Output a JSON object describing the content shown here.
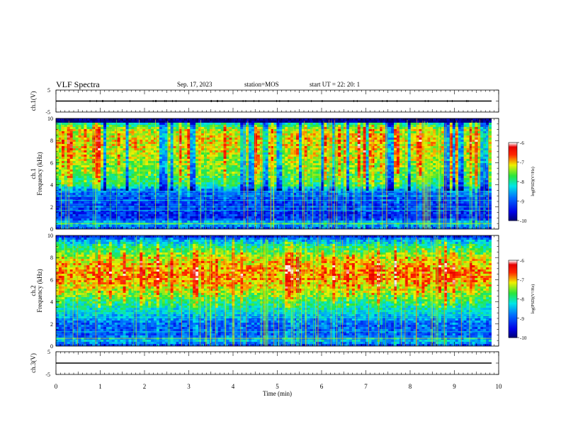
{
  "header": {
    "title": "VLF Spectra",
    "date": "Sep. 17, 2023",
    "station": "station=MOS",
    "start": "start  UT =   22: 20: 1"
  },
  "chart_data": [
    {
      "type": "line",
      "panel": "ch1-voltage",
      "ylabel": "ch.1(V)",
      "ylim": [
        -5,
        5
      ],
      "yticks": [
        "5",
        "-5"
      ],
      "xlim": [
        0,
        10
      ],
      "series": [
        {
          "x": [
            0,
            9.84
          ],
          "values": [
            0,
            0
          ]
        }
      ]
    },
    {
      "type": "heatmap",
      "panel": "ch1-spectrogram",
      "ylabel": "ch.1\nFrequency (kHz)",
      "ylim": [
        0,
        10
      ],
      "yticks": [
        "0",
        "2",
        "4",
        "6",
        "8",
        "10"
      ],
      "xlim": [
        0,
        10
      ],
      "data_xmax": 9.84,
      "colorbar": {
        "label": "log(PSD)(V²/Hz)",
        "range": [
          -10,
          -6
        ],
        "ticks": [
          "-6",
          "-7",
          "-8",
          "-9",
          "-10"
        ]
      },
      "band_profile": [
        [
          0,
          -9.1
        ],
        [
          0.5,
          -8.3
        ],
        [
          1,
          -9.3
        ],
        [
          2,
          -9.2
        ],
        [
          3,
          -9.0
        ],
        [
          3.5,
          -8.8
        ],
        [
          4,
          -7.9
        ],
        [
          5,
          -7.6
        ],
        [
          6,
          -7.4
        ],
        [
          7,
          -7.2
        ],
        [
          8,
          -7.1
        ],
        [
          9,
          -7.3
        ],
        [
          9.6,
          -8.2
        ],
        [
          10,
          -9.8
        ]
      ]
    },
    {
      "type": "heatmap",
      "panel": "ch2-spectrogram",
      "ylabel": "ch.2\nFrequency (kHz)",
      "ylim": [
        0,
        10
      ],
      "yticks": [
        "0",
        "2",
        "4",
        "6",
        "8",
        "10"
      ],
      "xlim": [
        0,
        10
      ],
      "data_xmax": 9.84,
      "colorbar": {
        "label": "log(PSD)(V²/Hz)",
        "range": [
          -10,
          -6
        ],
        "ticks": [
          "-6",
          "-7",
          "-8",
          "-9",
          "-10"
        ]
      },
      "band_profile": [
        [
          0,
          -9.2
        ],
        [
          0.5,
          -8.4
        ],
        [
          1,
          -9.0
        ],
        [
          2,
          -8.9
        ],
        [
          3,
          -8.3
        ],
        [
          4,
          -7.9
        ],
        [
          5,
          -7.3
        ],
        [
          6,
          -6.9
        ],
        [
          7,
          -6.9
        ],
        [
          8,
          -7.3
        ],
        [
          9,
          -8.0
        ],
        [
          9.6,
          -8.6
        ],
        [
          10,
          -9.6
        ]
      ]
    },
    {
      "type": "line",
      "panel": "ch3-voltage",
      "ylabel": "ch.3(V)",
      "ylim": [
        -5,
        5
      ],
      "yticks": [
        "5",
        "-5"
      ],
      "xlabel": "Time  (min)",
      "xlim": [
        0,
        10
      ],
      "xticks": [
        "0",
        "1",
        "2",
        "3",
        "4",
        "5",
        "6",
        "7",
        "8",
        "9",
        "10"
      ],
      "series": [
        {
          "x": [
            0,
            9.84
          ],
          "values": [
            0,
            0
          ]
        }
      ]
    }
  ]
}
